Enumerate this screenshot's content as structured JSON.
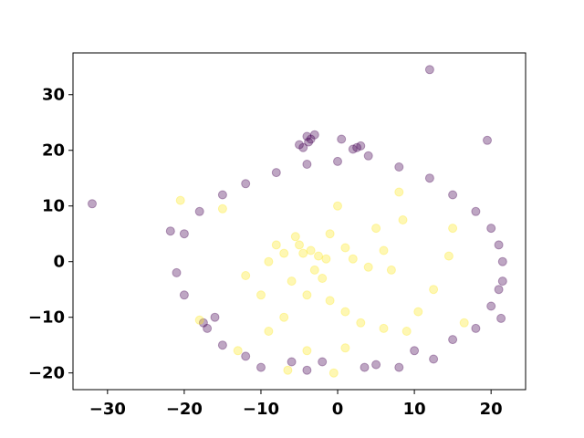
{
  "chart_data": {
    "type": "scatter",
    "title": "",
    "xlabel": "",
    "ylabel": "",
    "xlim": [
      -34.5,
      24.5
    ],
    "ylim": [
      -23.0,
      37.5
    ],
    "grid": false,
    "x_ticks": [
      -30,
      -20,
      -10,
      0,
      10,
      20
    ],
    "y_ticks": [
      -20,
      -10,
      0,
      10,
      20,
      30
    ],
    "x_tick_labels": [
      "−30",
      "−20",
      "−10",
      "0",
      "10",
      "20"
    ],
    "y_tick_labels": [
      "−20",
      "−10",
      "0",
      "10",
      "20",
      "30"
    ],
    "marker_alpha": 0.35,
    "series": [
      {
        "color": "#440154",
        "points": [
          [
            12.0,
            34.5
          ],
          [
            -32.0,
            10.4
          ],
          [
            19.5,
            21.8
          ],
          [
            -4.0,
            22.5
          ],
          [
            -3.5,
            22.0
          ],
          [
            -5.0,
            21.0
          ],
          [
            -4.5,
            20.5
          ],
          [
            -3.0,
            22.8
          ],
          [
            0.5,
            22.0
          ],
          [
            2.5,
            20.5
          ],
          [
            3.0,
            20.8
          ],
          [
            2.0,
            20.2
          ],
          [
            -3.8,
            21.5
          ],
          [
            21.5,
            -3.5
          ],
          [
            21.3,
            -10.2
          ],
          [
            12.5,
            -17.5
          ],
          [
            -4.0,
            -19.5
          ],
          [
            3.5,
            -19.0
          ],
          [
            8.0,
            -19.0
          ],
          [
            -21.8,
            5.5
          ],
          [
            -21.0,
            -2.0
          ],
          [
            -20.0,
            -6.0
          ],
          [
            -17.5,
            -11.0
          ],
          [
            -17.0,
            -12.0
          ],
          [
            -16.0,
            -10.0
          ],
          [
            -15.0,
            -15.0
          ],
          [
            -12.0,
            -17.0
          ],
          [
            -10.0,
            -19.0
          ],
          [
            -6.0,
            -18.0
          ],
          [
            -2.0,
            -18.0
          ],
          [
            5.0,
            -18.5
          ],
          [
            10.0,
            -16.0
          ],
          [
            15.0,
            -14.0
          ],
          [
            18.0,
            -12.0
          ],
          [
            20.0,
            -8.0
          ],
          [
            21.0,
            -5.0
          ],
          [
            21.5,
            0.0
          ],
          [
            21.0,
            3.0
          ],
          [
            20.0,
            6.0
          ],
          [
            18.0,
            9.0
          ],
          [
            15.0,
            12.0
          ],
          [
            12.0,
            15.0
          ],
          [
            8.0,
            17.0
          ],
          [
            4.0,
            19.0
          ],
          [
            0.0,
            18.0
          ],
          [
            -4.0,
            17.5
          ],
          [
            -8.0,
            16.0
          ],
          [
            -12.0,
            14.0
          ],
          [
            -15.0,
            12.0
          ],
          [
            -18.0,
            9.0
          ],
          [
            -20.0,
            5.0
          ]
        ]
      },
      {
        "color": "#fde725",
        "points": [
          [
            -20.5,
            11.0
          ],
          [
            -18.0,
            -10.5
          ],
          [
            -15.0,
            9.5
          ],
          [
            -13.0,
            -16.0
          ],
          [
            -9.0,
            -12.5
          ],
          [
            -5.5,
            4.5
          ],
          [
            -5.0,
            3.0
          ],
          [
            -4.5,
            1.5
          ],
          [
            -3.5,
            2.0
          ],
          [
            -2.5,
            1.0
          ],
          [
            -1.5,
            0.5
          ],
          [
            -3.0,
            -1.5
          ],
          [
            -2.0,
            -3.0
          ],
          [
            -6.0,
            -3.5
          ],
          [
            -7.0,
            1.5
          ],
          [
            -8.0,
            3.0
          ],
          [
            -9.0,
            0.0
          ],
          [
            -4.0,
            -6.0
          ],
          [
            -1.0,
            -7.0
          ],
          [
            1.0,
            -9.0
          ],
          [
            3.0,
            -11.0
          ],
          [
            6.0,
            -12.0
          ],
          [
            9.0,
            -12.5
          ],
          [
            10.5,
            -9.0
          ],
          [
            12.5,
            -5.0
          ],
          [
            14.5,
            1.0
          ],
          [
            8.0,
            12.5
          ],
          [
            8.5,
            7.5
          ],
          [
            5.0,
            6.0
          ],
          [
            0.0,
            10.0
          ],
          [
            -1.0,
            5.0
          ],
          [
            1.0,
            2.5
          ],
          [
            2.0,
            0.5
          ],
          [
            4.0,
            -1.0
          ],
          [
            -0.5,
            -20.0
          ],
          [
            -4.0,
            -16.0
          ],
          [
            -7.0,
            -10.0
          ],
          [
            -10.0,
            -6.0
          ],
          [
            -12.0,
            -2.5
          ],
          [
            16.5,
            -11.0
          ],
          [
            15.0,
            6.0
          ],
          [
            7.0,
            -1.5
          ],
          [
            6.0,
            2.0
          ],
          [
            -6.5,
            -19.5
          ],
          [
            1.0,
            -15.5
          ]
        ]
      }
    ]
  }
}
